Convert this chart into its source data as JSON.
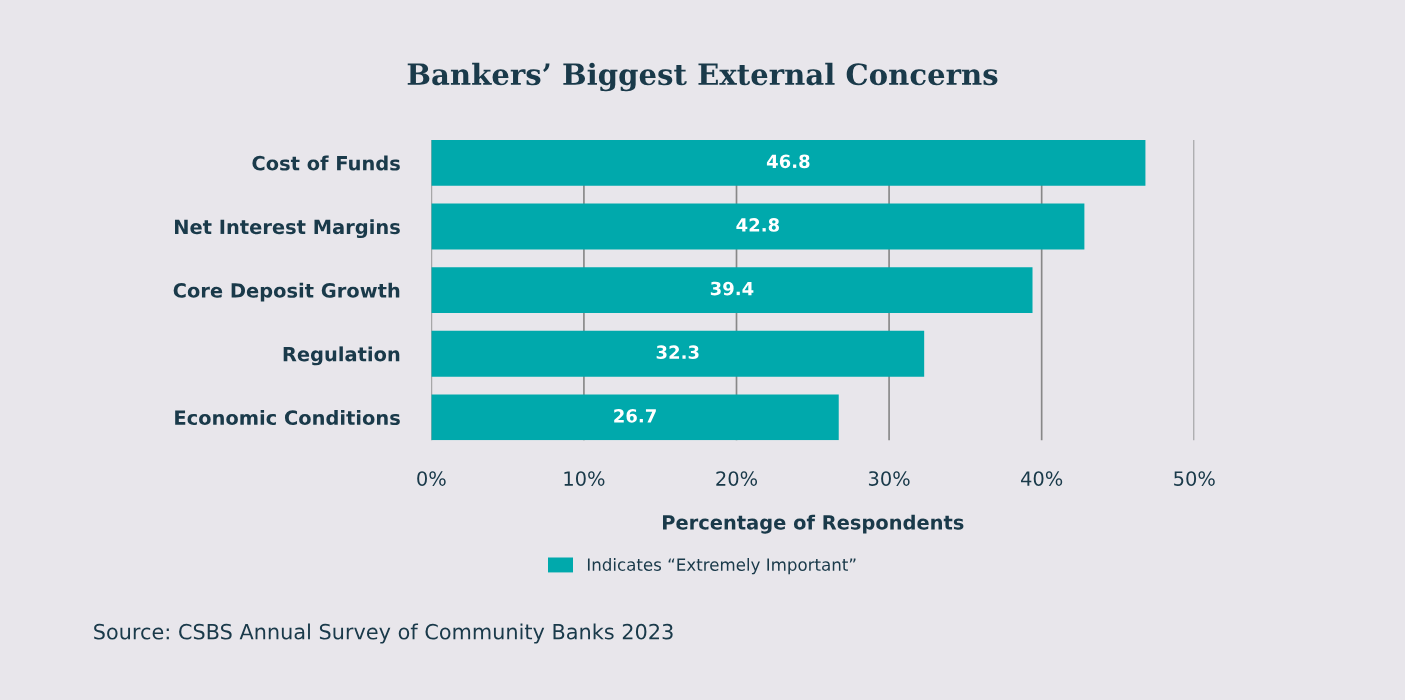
{
  "chart_data": {
    "type": "bar",
    "orientation": "horizontal",
    "title": "Bankers’ Biggest External Concerns",
    "categories": [
      "Cost of Funds",
      "Net Interest Margins",
      "Core Deposit Growth",
      "Regulation",
      "Economic Conditions"
    ],
    "series": [
      {
        "name": "Indicates “Extremely Important”",
        "color": "#00a9ac",
        "values": [
          46.8,
          42.8,
          39.4,
          32.3,
          26.7
        ]
      }
    ],
    "xlabel": "Percentage of Respondents",
    "xlim": [
      0,
      50
    ],
    "xticks": [
      {
        "value": 0,
        "label": "0%"
      },
      {
        "value": 10,
        "label": "10%"
      },
      {
        "value": 20,
        "label": "20%"
      },
      {
        "value": 30,
        "label": "30%"
      },
      {
        "value": 40,
        "label": "40%"
      },
      {
        "value": 50,
        "label": "50%"
      }
    ],
    "grid": "x",
    "legend": "bottom",
    "data_labels": true,
    "annotations": [
      "Source: CSBS Annual Survey of Community Banks 2023"
    ]
  }
}
